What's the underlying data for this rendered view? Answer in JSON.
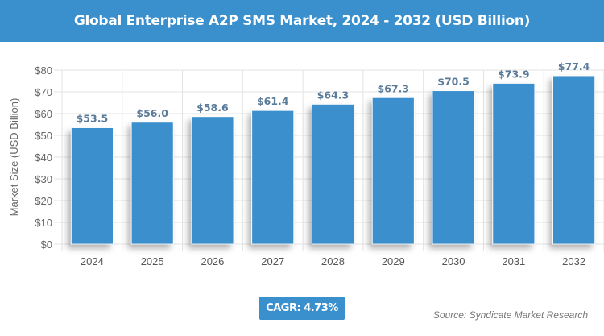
{
  "chart_data": {
    "type": "bar",
    "title": "Global Enterprise A2P SMS Market, 2024 - 2032 (USD Billion)",
    "ylabel": "Market Size (USD Billion)",
    "xlabel": "",
    "categories": [
      "2024",
      "2025",
      "2026",
      "2027",
      "2028",
      "2029",
      "2030",
      "2031",
      "2032"
    ],
    "values": [
      53.5,
      56.0,
      58.6,
      61.4,
      64.3,
      67.3,
      70.5,
      73.9,
      77.4
    ],
    "data_labels": [
      "$53.5",
      "$56.0",
      "$58.6",
      "$61.4",
      "$64.3",
      "$67.3",
      "$70.5",
      "$73.9",
      "$77.4"
    ],
    "ylim": [
      0,
      80
    ],
    "yticks": [
      0,
      10,
      20,
      30,
      40,
      50,
      60,
      70,
      80
    ],
    "ytick_labels": [
      "$0",
      "$10",
      "$20",
      "$30",
      "$40",
      "$50",
      "$60",
      "$70",
      "$80"
    ],
    "grid": true,
    "bar_color": "#3a8fcd",
    "label_color": "#5a7a9a"
  },
  "cagr": "CAGR: 4.73%",
  "source": "Source: Syndicate Market Research",
  "colors": {
    "header": "#3a8fcd"
  }
}
